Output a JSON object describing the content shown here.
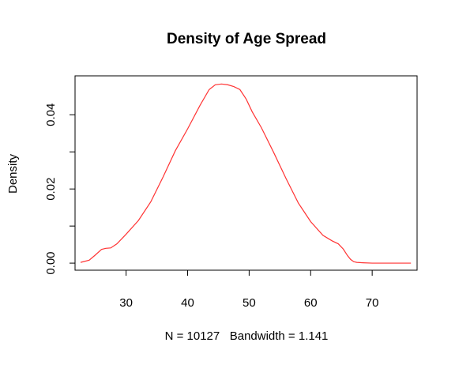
{
  "chart_data": {
    "type": "line",
    "title": "Density of Age Spread",
    "xlabel": "N = 10127   Bandwidth = 1.141",
    "ylabel": "Density",
    "xlim": [
      21.7,
      77.3
    ],
    "ylim": [
      -0.0019,
      0.0505
    ],
    "x_ticks": [
      30,
      40,
      50,
      60,
      70
    ],
    "x_tick_labels": [
      "30",
      "40",
      "50",
      "60",
      "70"
    ],
    "y_ticks": [
      0.0,
      0.02,
      0.04
    ],
    "y_tick_labels": [
      "0.00",
      "0.02",
      "0.04"
    ],
    "y_minor_ticks": [
      0.01,
      0.03
    ],
    "grid": false,
    "line_color": "#ff3333",
    "series": [
      {
        "x": [
          22.6,
          24,
          25,
          26,
          26.7,
          27.5,
          28.5,
          30,
          32,
          34,
          36,
          38,
          40,
          42,
          43.5,
          44.5,
          45.5,
          46.5,
          47.5,
          48.5,
          49.5,
          50.5,
          52,
          54,
          56,
          58,
          60,
          62,
          63.5,
          64.5,
          65.3,
          66,
          66.5,
          67,
          67.5,
          68.5,
          70,
          73,
          76.3
        ],
        "values": [
          0.0002,
          0.0008,
          0.0022,
          0.0037,
          0.004,
          0.0041,
          0.0052,
          0.0078,
          0.0115,
          0.0165,
          0.0232,
          0.0303,
          0.0362,
          0.0425,
          0.0468,
          0.0481,
          0.0483,
          0.0481,
          0.0476,
          0.0468,
          0.0443,
          0.0408,
          0.0365,
          0.0298,
          0.0228,
          0.0162,
          0.0112,
          0.0075,
          0.006,
          0.0052,
          0.0038,
          0.002,
          0.001,
          0.0004,
          0.0002,
          0.0001,
          0.0,
          0.0,
          0.0
        ]
      }
    ]
  }
}
